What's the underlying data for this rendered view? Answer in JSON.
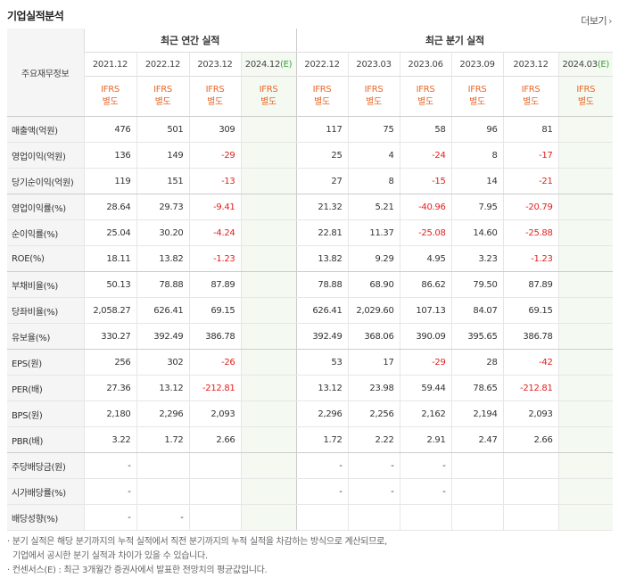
{
  "title": "기업실적분석",
  "more_label": "더보기",
  "row_header_label": "주요재무정보",
  "groups": {
    "annual": "최근 연간 실적",
    "quarterly": "최근 분기 실적"
  },
  "periods": {
    "annual": [
      "2021.12",
      "2022.12",
      "2023.12",
      "2024.12(E)"
    ],
    "quarterly": [
      "2022.12",
      "2023.03",
      "2023.06",
      "2023.09",
      "2023.12",
      "2024.03(E)"
    ]
  },
  "basis_line1": "IFRS",
  "basis_line2": "별도",
  "rows": [
    {
      "label": "매출액(억원)",
      "annual": [
        "476",
        "501",
        "309",
        ""
      ],
      "quarterly": [
        "117",
        "75",
        "58",
        "96",
        "81",
        ""
      ]
    },
    {
      "label": "영업이익(억원)",
      "annual": [
        "136",
        "149",
        "-29",
        ""
      ],
      "quarterly": [
        "25",
        "4",
        "-24",
        "8",
        "-17",
        ""
      ]
    },
    {
      "label": "당기순이익(억원)",
      "annual": [
        "119",
        "151",
        "-13",
        ""
      ],
      "quarterly": [
        "27",
        "8",
        "-15",
        "14",
        "-21",
        ""
      ]
    },
    {
      "label": "영업이익률(%)",
      "annual": [
        "28.64",
        "29.73",
        "-9.41",
        ""
      ],
      "quarterly": [
        "21.32",
        "5.21",
        "-40.96",
        "7.95",
        "-20.79",
        ""
      ]
    },
    {
      "label": "순이익률(%)",
      "annual": [
        "25.04",
        "30.20",
        "-4.24",
        ""
      ],
      "quarterly": [
        "22.81",
        "11.37",
        "-25.08",
        "14.60",
        "-25.88",
        ""
      ]
    },
    {
      "label": "ROE(%)",
      "annual": [
        "18.11",
        "13.82",
        "-1.23",
        ""
      ],
      "quarterly": [
        "13.82",
        "9.29",
        "4.95",
        "3.23",
        "-1.23",
        ""
      ]
    },
    {
      "label": "부채비율(%)",
      "annual": [
        "50.13",
        "78.88",
        "87.89",
        ""
      ],
      "quarterly": [
        "78.88",
        "68.90",
        "86.62",
        "79.50",
        "87.89",
        ""
      ]
    },
    {
      "label": "당좌비율(%)",
      "annual": [
        "2,058.27",
        "626.41",
        "69.15",
        ""
      ],
      "quarterly": [
        "626.41",
        "2,029.60",
        "107.13",
        "84.07",
        "69.15",
        ""
      ]
    },
    {
      "label": "유보율(%)",
      "annual": [
        "330.27",
        "392.49",
        "386.78",
        ""
      ],
      "quarterly": [
        "392.49",
        "368.06",
        "390.09",
        "395.65",
        "386.78",
        ""
      ]
    },
    {
      "label": "EPS(원)",
      "annual": [
        "256",
        "302",
        "-26",
        ""
      ],
      "quarterly": [
        "53",
        "17",
        "-29",
        "28",
        "-42",
        ""
      ]
    },
    {
      "label": "PER(배)",
      "annual": [
        "27.36",
        "13.12",
        "-212.81",
        ""
      ],
      "quarterly": [
        "13.12",
        "23.98",
        "59.44",
        "78.65",
        "-212.81",
        ""
      ]
    },
    {
      "label": "BPS(원)",
      "annual": [
        "2,180",
        "2,296",
        "2,093",
        ""
      ],
      "quarterly": [
        "2,296",
        "2,256",
        "2,162",
        "2,194",
        "2,093",
        ""
      ]
    },
    {
      "label": "PBR(배)",
      "annual": [
        "3.22",
        "1.72",
        "2.66",
        ""
      ],
      "quarterly": [
        "1.72",
        "2.22",
        "2.91",
        "2.47",
        "2.66",
        ""
      ]
    },
    {
      "label": "주당배당금(원)",
      "annual": [
        "-",
        "",
        "",
        ""
      ],
      "quarterly": [
        "-",
        "-",
        "-",
        "",
        "",
        " "
      ]
    },
    {
      "label": "시가배당률(%)",
      "annual": [
        "-",
        "",
        "",
        ""
      ],
      "quarterly": [
        "-",
        "-",
        "-",
        "",
        "",
        ""
      ]
    },
    {
      "label": "배당성향(%)",
      "annual": [
        "-",
        "-",
        "",
        ""
      ],
      "quarterly": [
        "",
        "",
        "",
        "",
        "",
        ""
      ]
    }
  ],
  "notes": [
    "· 분기 실적은 해당 분기까지의 누적 실적에서 직전 분기까지의 누적 실적을 차감하는 방식으로 계산되므로,",
    "기업에서 공시한 분기 실적과 차이가 있을 수 있습니다.",
    "· 컨센서스(E) : 최근 3개월간 증권사에서 발표한 전망치의 평균값입니다."
  ],
  "colors": {
    "negative": "#e0221d",
    "ifrs": "#e8682a",
    "estimate_bg": "#f4faf2",
    "estimate_mark": "#39a036"
  }
}
